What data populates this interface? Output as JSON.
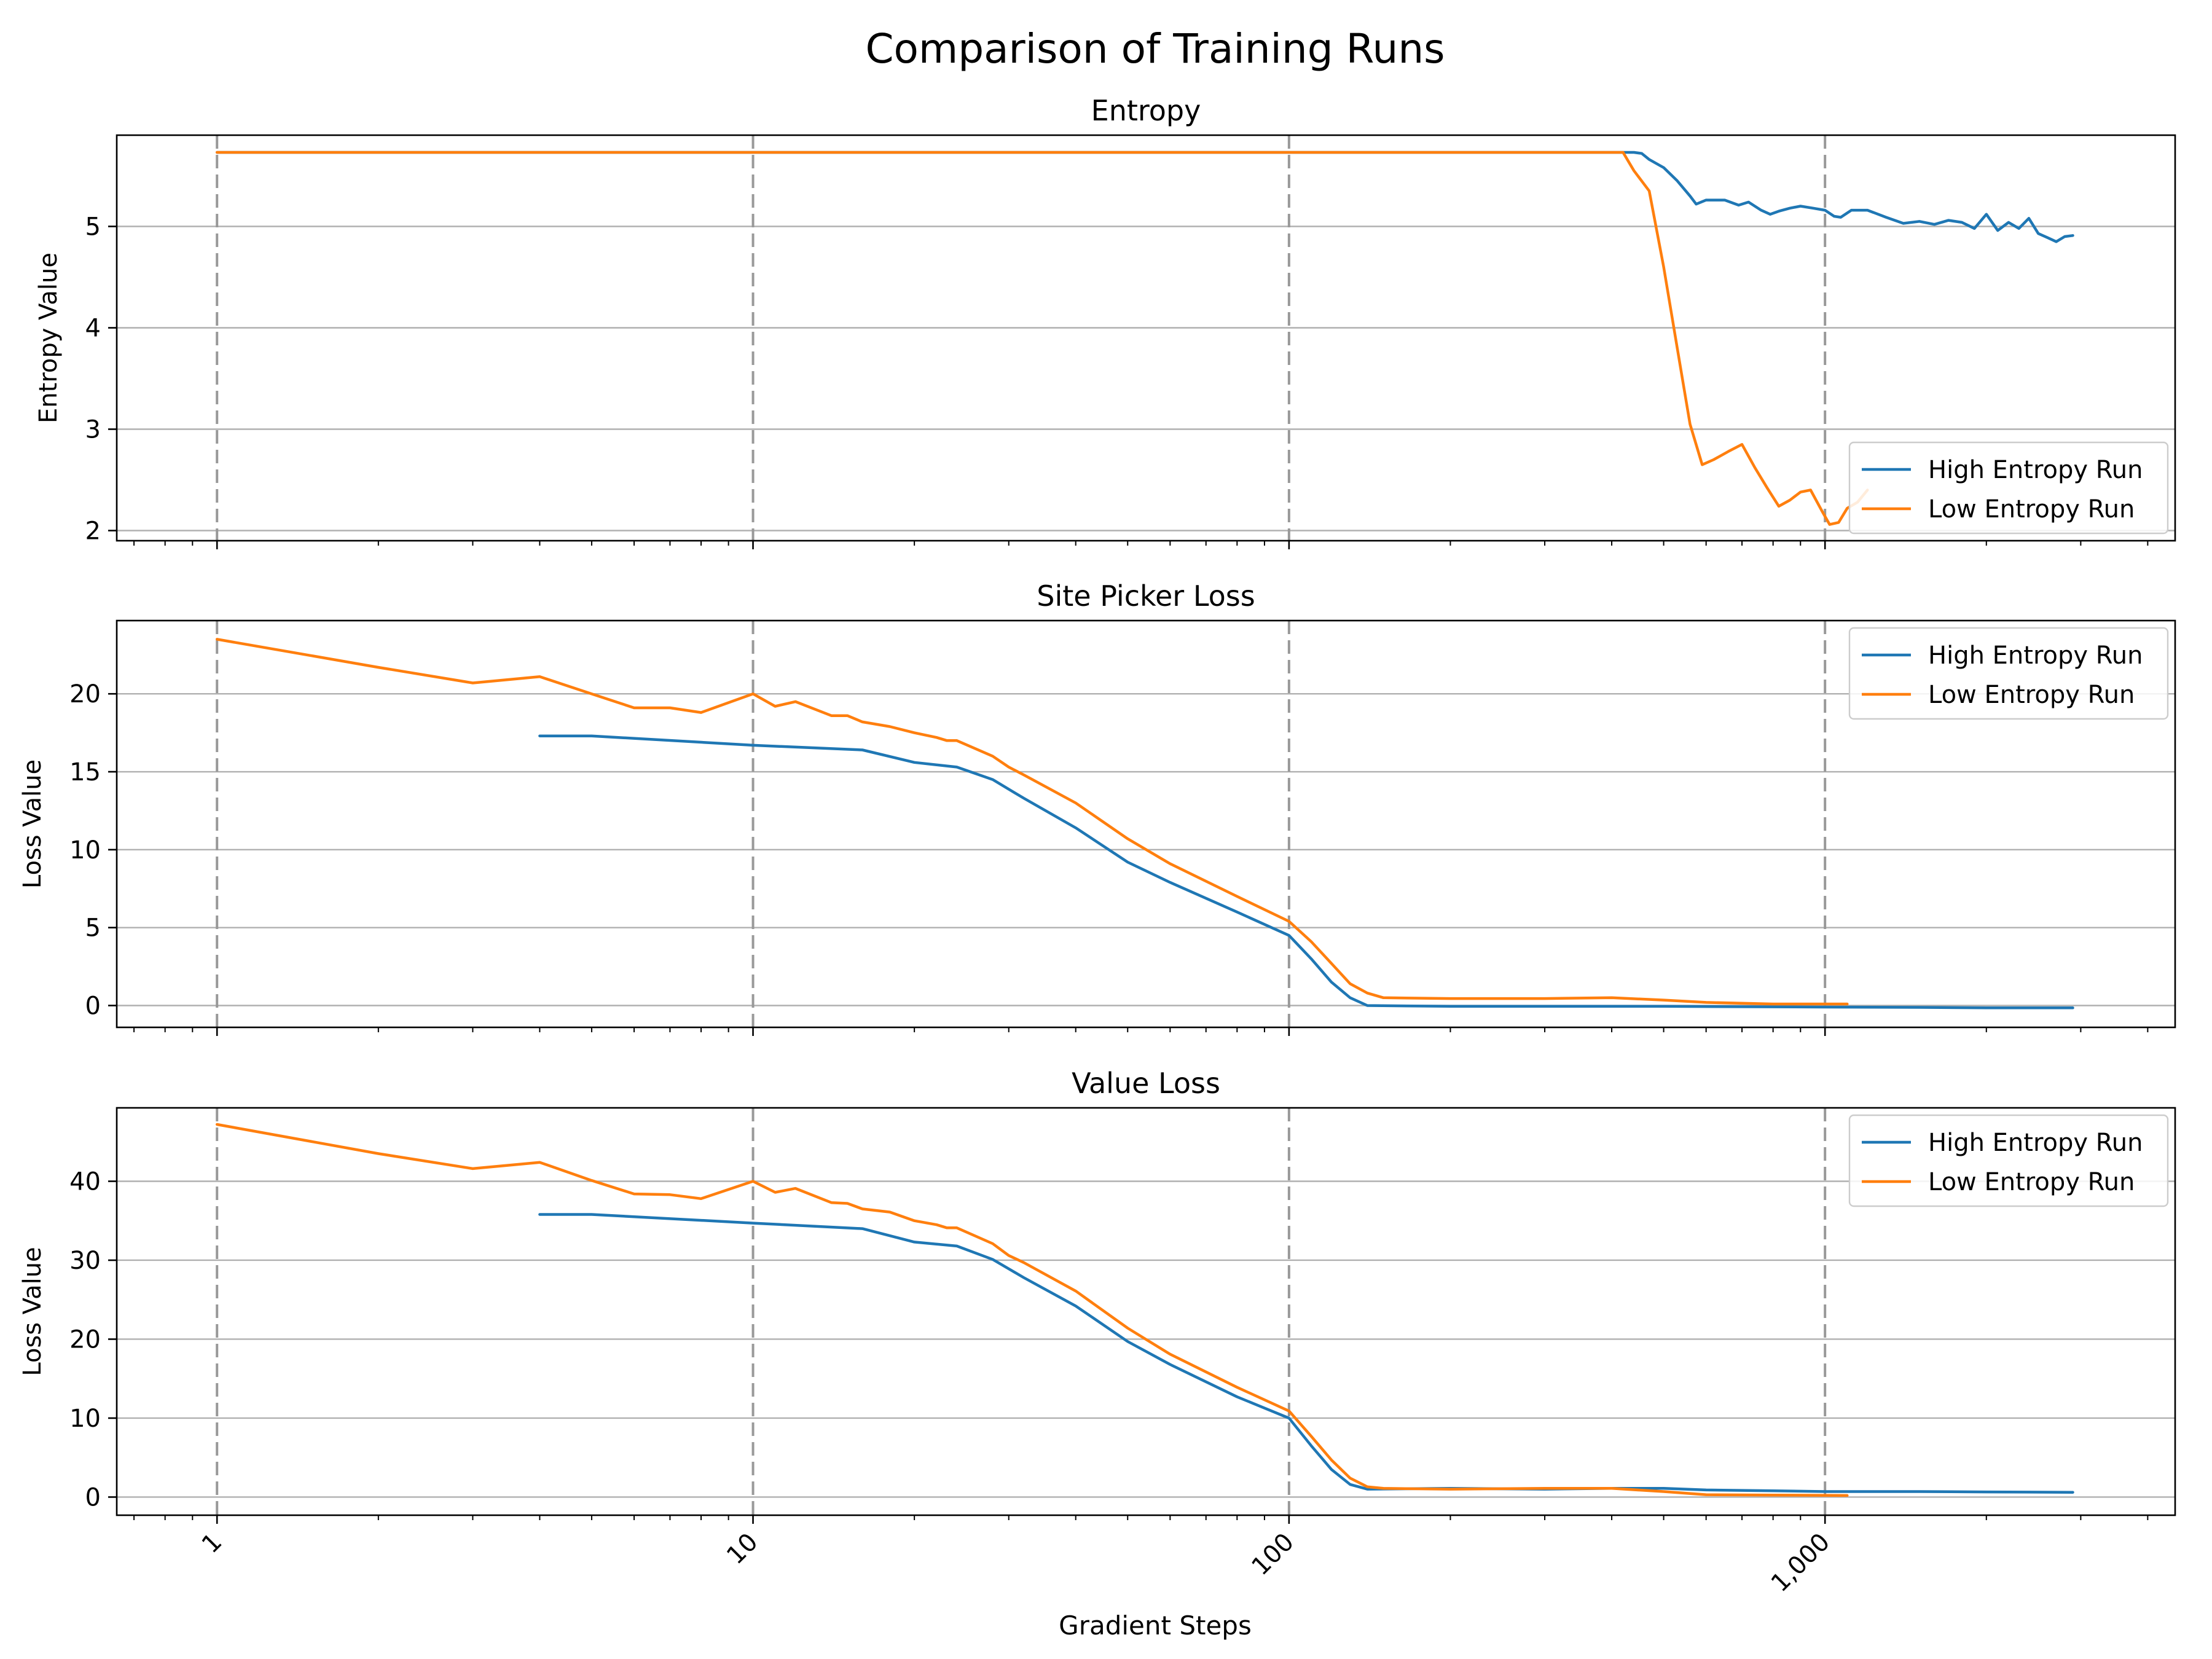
{
  "figure": {
    "title": "Comparison of Training Runs",
    "xlabel": "Gradient Steps"
  },
  "colors": {
    "high": "#1f77b4",
    "low": "#ff7f0e",
    "grid": "#b0b0b0",
    "vline": "#999999"
  },
  "chart_data": [
    {
      "type": "line",
      "title": "Entropy",
      "xlabel": "",
      "ylabel": "Entropy Value",
      "xscale": "log",
      "xlim": [
        0.65,
        4500
      ],
      "ylim": [
        1.9,
        5.9
      ],
      "yticks": [
        2,
        3,
        4,
        5
      ],
      "xticks": [
        1,
        10,
        100,
        1000
      ],
      "xtick_labels": [
        "1",
        "10",
        "100",
        "1,000"
      ],
      "grid": "horizontal, with dashed vertical lines at decades",
      "legend": "lower right",
      "series": [
        {
          "name": "High Entropy Run",
          "color": "#1f77b4",
          "points": [
            [
              1,
              5.73
            ],
            [
              10,
              5.73
            ],
            [
              100,
              5.73
            ],
            [
              440,
              5.73
            ],
            [
              455,
              5.72
            ],
            [
              470,
              5.66
            ],
            [
              500,
              5.58
            ],
            [
              530,
              5.45
            ],
            [
              560,
              5.3
            ],
            [
              575,
              5.22
            ],
            [
              600,
              5.26
            ],
            [
              650,
              5.26
            ],
            [
              690,
              5.21
            ],
            [
              720,
              5.24
            ],
            [
              760,
              5.16
            ],
            [
              790,
              5.12
            ],
            [
              820,
              5.15
            ],
            [
              860,
              5.18
            ],
            [
              900,
              5.2
            ],
            [
              950,
              5.18
            ],
            [
              1000,
              5.16
            ],
            [
              1040,
              5.1
            ],
            [
              1070,
              5.09
            ],
            [
              1120,
              5.16
            ],
            [
              1200,
              5.16
            ],
            [
              1300,
              5.09
            ],
            [
              1400,
              5.03
            ],
            [
              1500,
              5.05
            ],
            [
              1600,
              5.02
            ],
            [
              1700,
              5.06
            ],
            [
              1800,
              5.04
            ],
            [
              1900,
              4.98
            ],
            [
              2000,
              5.12
            ],
            [
              2100,
              4.96
            ],
            [
              2200,
              5.04
            ],
            [
              2300,
              4.98
            ],
            [
              2400,
              5.08
            ],
            [
              2500,
              4.93
            ],
            [
              2600,
              4.89
            ],
            [
              2700,
              4.85
            ],
            [
              2800,
              4.9
            ],
            [
              2900,
              4.91
            ]
          ]
        },
        {
          "name": "Low Entropy Run",
          "color": "#ff7f0e",
          "points": [
            [
              1,
              5.73
            ],
            [
              10,
              5.73
            ],
            [
              100,
              5.73
            ],
            [
              420,
              5.73
            ],
            [
              440,
              5.55
            ],
            [
              470,
              5.35
            ],
            [
              500,
              4.6
            ],
            [
              530,
              3.8
            ],
            [
              560,
              3.05
            ],
            [
              590,
              2.65
            ],
            [
              620,
              2.7
            ],
            [
              660,
              2.78
            ],
            [
              700,
              2.85
            ],
            [
              740,
              2.62
            ],
            [
              780,
              2.42
            ],
            [
              820,
              2.24
            ],
            [
              860,
              2.3
            ],
            [
              900,
              2.38
            ],
            [
              940,
              2.4
            ],
            [
              990,
              2.18
            ],
            [
              1020,
              2.06
            ],
            [
              1060,
              2.08
            ],
            [
              1100,
              2.22
            ],
            [
              1150,
              2.28
            ],
            [
              1200,
              2.4
            ]
          ]
        }
      ]
    },
    {
      "type": "line",
      "title": "Site Picker Loss",
      "xlabel": "",
      "ylabel": "Loss Value",
      "xscale": "log",
      "xlim": [
        0.65,
        4500
      ],
      "ylim": [
        -1.4,
        24.7
      ],
      "yticks": [
        0,
        5,
        10,
        15,
        20
      ],
      "xticks": [
        1,
        10,
        100,
        1000
      ],
      "xtick_labels": [
        "1",
        "10",
        "100",
        "1,000"
      ],
      "grid": "horizontal, with dashed vertical lines at decades",
      "legend": "upper right",
      "series": [
        {
          "name": "High Entropy Run",
          "color": "#1f77b4",
          "points": [
            [
              4,
              17.3
            ],
            [
              5,
              17.3
            ],
            [
              10,
              16.7
            ],
            [
              16,
              16.4
            ],
            [
              20,
              15.6
            ],
            [
              24,
              15.3
            ],
            [
              28,
              14.5
            ],
            [
              32,
              13.3
            ],
            [
              40,
              11.4
            ],
            [
              50,
              9.2
            ],
            [
              60,
              7.9
            ],
            [
              80,
              6.0
            ],
            [
              100,
              4.5
            ],
            [
              110,
              3.0
            ],
            [
              120,
              1.5
            ],
            [
              130,
              0.5
            ],
            [
              140,
              0.0
            ],
            [
              200,
              -0.05
            ],
            [
              300,
              -0.05
            ],
            [
              500,
              -0.05
            ],
            [
              1000,
              -0.1
            ],
            [
              1500,
              -0.12
            ],
            [
              2000,
              -0.15
            ],
            [
              2900,
              -0.15
            ]
          ]
        },
        {
          "name": "Low Entropy Run",
          "color": "#ff7f0e",
          "points": [
            [
              1,
              23.5
            ],
            [
              2,
              21.7
            ],
            [
              3,
              20.7
            ],
            [
              4,
              21.1
            ],
            [
              5,
              20.0
            ],
            [
              6,
              19.1
            ],
            [
              7,
              19.1
            ],
            [
              8,
              18.8
            ],
            [
              10,
              20.0
            ],
            [
              11,
              19.2
            ],
            [
              12,
              19.5
            ],
            [
              14,
              18.6
            ],
            [
              15,
              18.6
            ],
            [
              16,
              18.2
            ],
            [
              18,
              17.9
            ],
            [
              20,
              17.5
            ],
            [
              22,
              17.2
            ],
            [
              23,
              17.0
            ],
            [
              24,
              17.0
            ],
            [
              28,
              16.0
            ],
            [
              30,
              15.3
            ],
            [
              32,
              14.8
            ],
            [
              40,
              13.0
            ],
            [
              50,
              10.7
            ],
            [
              60,
              9.1
            ],
            [
              80,
              7.0
            ],
            [
              100,
              5.4
            ],
            [
              110,
              4.1
            ],
            [
              120,
              2.7
            ],
            [
              130,
              1.4
            ],
            [
              140,
              0.8
            ],
            [
              150,
              0.5
            ],
            [
              200,
              0.45
            ],
            [
              300,
              0.45
            ],
            [
              400,
              0.5
            ],
            [
              500,
              0.35
            ],
            [
              600,
              0.2
            ],
            [
              800,
              0.1
            ],
            [
              1100,
              0.1
            ]
          ]
        }
      ]
    },
    {
      "type": "line",
      "title": "Value Loss",
      "xlabel": "Gradient Steps",
      "ylabel": "Loss Value",
      "xscale": "log",
      "xlim": [
        0.65,
        4500
      ],
      "ylim": [
        -2.3,
        49.3
      ],
      "yticks": [
        0,
        10,
        20,
        30,
        40
      ],
      "xticks": [
        1,
        10,
        100,
        1000
      ],
      "xtick_labels": [
        "1",
        "10",
        "100",
        "1,000"
      ],
      "grid": "horizontal, with dashed vertical lines at decades",
      "legend": "upper right",
      "series": [
        {
          "name": "High Entropy Run",
          "color": "#1f77b4",
          "points": [
            [
              4,
              35.8
            ],
            [
              5,
              35.8
            ],
            [
              10,
              34.7
            ],
            [
              16,
              34.0
            ],
            [
              20,
              32.3
            ],
            [
              24,
              31.8
            ],
            [
              28,
              30.1
            ],
            [
              32,
              27.8
            ],
            [
              40,
              24.2
            ],
            [
              50,
              19.7
            ],
            [
              60,
              16.8
            ],
            [
              80,
              12.7
            ],
            [
              100,
              10.0
            ],
            [
              110,
              6.5
            ],
            [
              120,
              3.5
            ],
            [
              130,
              1.6
            ],
            [
              140,
              1.0
            ],
            [
              200,
              1.1
            ],
            [
              300,
              1.0
            ],
            [
              400,
              1.1
            ],
            [
              500,
              1.1
            ],
            [
              600,
              0.9
            ],
            [
              800,
              0.8
            ],
            [
              1000,
              0.7
            ],
            [
              1500,
              0.7
            ],
            [
              2000,
              0.65
            ],
            [
              2900,
              0.6
            ]
          ]
        },
        {
          "name": "Low Entropy Run",
          "color": "#ff7f0e",
          "points": [
            [
              1,
              47.2
            ],
            [
              2,
              43.5
            ],
            [
              3,
              41.6
            ],
            [
              4,
              42.4
            ],
            [
              5,
              40.1
            ],
            [
              6,
              38.4
            ],
            [
              7,
              38.3
            ],
            [
              8,
              37.8
            ],
            [
              10,
              40.0
            ],
            [
              11,
              38.6
            ],
            [
              12,
              39.1
            ],
            [
              14,
              37.3
            ],
            [
              15,
              37.2
            ],
            [
              16,
              36.5
            ],
            [
              18,
              36.1
            ],
            [
              20,
              35.0
            ],
            [
              22,
              34.5
            ],
            [
              23,
              34.1
            ],
            [
              24,
              34.1
            ],
            [
              28,
              32.1
            ],
            [
              30,
              30.6
            ],
            [
              32,
              29.7
            ],
            [
              40,
              26.1
            ],
            [
              50,
              21.4
            ],
            [
              60,
              18.1
            ],
            [
              80,
              13.9
            ],
            [
              100,
              10.9
            ],
            [
              110,
              7.7
            ],
            [
              120,
              4.7
            ],
            [
              130,
              2.4
            ],
            [
              140,
              1.3
            ],
            [
              150,
              1.1
            ],
            [
              200,
              1.0
            ],
            [
              300,
              1.1
            ],
            [
              400,
              1.1
            ],
            [
              500,
              0.7
            ],
            [
              600,
              0.3
            ],
            [
              800,
              0.25
            ],
            [
              1100,
              0.2
            ]
          ]
        }
      ]
    }
  ]
}
